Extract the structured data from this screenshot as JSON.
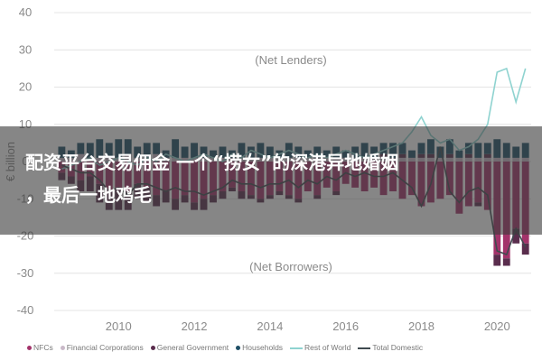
{
  "chart_data": {
    "type": "bar",
    "title": "",
    "ylabel": "€ billion",
    "xlabel": "",
    "ylim": [
      -40,
      40
    ],
    "xlim": [
      2008.3,
      2020.9
    ],
    "yticks": [
      40,
      30,
      20,
      10,
      0,
      -10,
      -20,
      -30,
      -40
    ],
    "xticks": [
      2010,
      2012,
      2014,
      2016,
      2018,
      2020
    ],
    "grid": true,
    "stacked": true,
    "annotations": [
      "(Net Lenders)",
      "(Net Borrowers)"
    ],
    "x": [
      2008.5,
      2008.75,
      2009,
      2009.25,
      2009.5,
      2009.75,
      2010,
      2010.25,
      2010.5,
      2010.75,
      2011,
      2011.25,
      2011.5,
      2011.75,
      2012,
      2012.25,
      2012.5,
      2012.75,
      2013,
      2013.25,
      2013.5,
      2013.75,
      2014,
      2014.25,
      2014.5,
      2014.75,
      2015,
      2015.25,
      2015.5,
      2015.75,
      2016,
      2016.25,
      2016.5,
      2016.75,
      2017,
      2017.25,
      2017.5,
      2017.75,
      2018,
      2018.25,
      2018.5,
      2018.75,
      2019,
      2019.25,
      2019.5,
      2019.75,
      2020,
      2020.25,
      2020.5,
      2020.75
    ],
    "series": [
      {
        "name": "NFCs",
        "kind": "bar",
        "color": "#a3336a",
        "values": [
          -3,
          -4,
          -5,
          -4,
          -6,
          -8,
          -7,
          -8,
          -6,
          -7,
          -9,
          -8,
          -10,
          -9,
          -11,
          -10,
          -9,
          -8,
          -7,
          -8,
          -9,
          -10,
          -9,
          -8,
          -9,
          -10,
          -8,
          -9,
          -7,
          -8,
          -6,
          -7,
          -8,
          -7,
          -9,
          -8,
          -10,
          -9,
          -12,
          -11,
          -10,
          -9,
          -14,
          -12,
          -11,
          -13,
          -25,
          -26,
          -18,
          -22
        ]
      },
      {
        "name": "Financial Corporations",
        "kind": "bar",
        "color": "#c9b9c8",
        "values": [
          1,
          1,
          2,
          1,
          1,
          1,
          1,
          2,
          1,
          1,
          2,
          1,
          1,
          1,
          1,
          1,
          1,
          1,
          1,
          1,
          1,
          1,
          1,
          1,
          1,
          1,
          1,
          1,
          1,
          1,
          1,
          1,
          1,
          1,
          1,
          1,
          1,
          1,
          1,
          1,
          1,
          1,
          1,
          1,
          1,
          1,
          1,
          1,
          1,
          1
        ]
      },
      {
        "name": "General Government",
        "kind": "bar",
        "color": "#5a2d4d",
        "values": [
          -2,
          -2,
          -3,
          -4,
          -5,
          -5,
          -6,
          -5,
          -4,
          -4,
          -3,
          -3,
          -3,
          -2,
          -2,
          -3,
          -2,
          -2,
          -1,
          -2,
          -1,
          -1,
          -1,
          -1,
          -1,
          -1,
          0,
          -1,
          0,
          -1,
          0,
          0,
          0,
          0,
          1,
          0,
          1,
          0,
          1,
          1,
          0,
          1,
          0,
          1,
          -1,
          1,
          -3,
          -2,
          -4,
          -3
        ]
      },
      {
        "name": "Households",
        "kind": "bar",
        "color": "#1e4f66",
        "values": [
          3,
          2,
          3,
          4,
          5,
          4,
          5,
          4,
          3,
          4,
          3,
          2,
          5,
          3,
          4,
          3,
          2,
          3,
          2,
          4,
          3,
          4,
          3,
          2,
          4,
          3,
          2,
          3,
          2,
          3,
          2,
          3,
          4,
          3,
          3,
          4,
          3,
          2,
          3,
          4,
          3,
          4,
          2,
          3,
          4,
          3,
          5,
          4,
          3,
          4
        ]
      },
      {
        "name": "Rest of World",
        "kind": "line",
        "color": "#8fd3d0",
        "values": [
          -2,
          -1,
          0,
          1,
          -1,
          0,
          1,
          0,
          -1,
          1,
          0,
          2,
          1,
          0,
          1,
          2,
          1,
          0,
          2,
          1,
          3,
          2,
          1,
          2,
          3,
          2,
          1,
          2,
          1,
          2,
          3,
          2,
          1,
          2,
          3,
          4,
          5,
          8,
          12,
          7,
          5,
          6,
          3,
          4,
          6,
          10,
          24,
          25,
          16,
          25
        ]
      },
      {
        "name": "Total Domestic",
        "kind": "line",
        "color": "#3f4a4f",
        "values": [
          -1,
          -2,
          -3,
          -3,
          -5,
          -8,
          -7,
          -9,
          -6,
          -6,
          -7,
          -8,
          -7,
          -8,
          -8,
          -9,
          -8,
          -7,
          -5,
          -6,
          -6,
          -7,
          -6,
          -6,
          -5,
          -7,
          -5,
          -6,
          -4,
          -5,
          -3,
          -4,
          -3,
          -4,
          -4,
          -3,
          -5,
          -7,
          -12,
          -6,
          4,
          -8,
          -11,
          -8,
          -7,
          -9,
          -24,
          -25,
          -18,
          -23
        ]
      }
    ]
  },
  "overlay": {
    "line1": "配资平台交易佣金 一个“捞女”的深港异地婚姻",
    "line2": "，最后一地鸡毛"
  }
}
